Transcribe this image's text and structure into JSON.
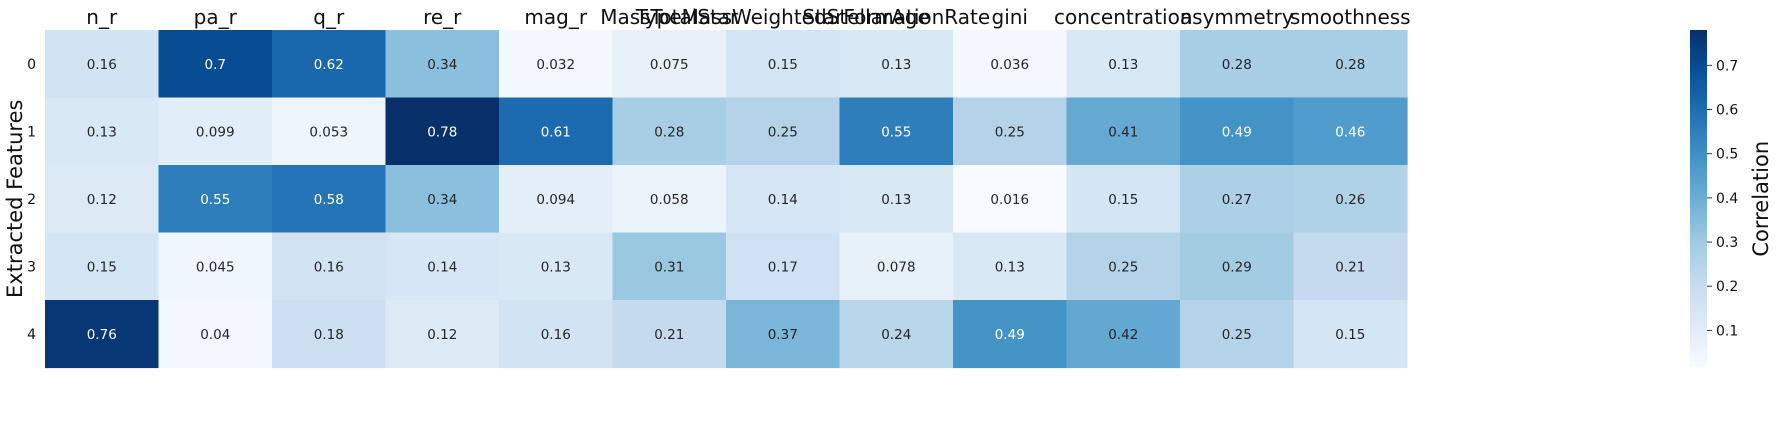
{
  "chart_data": {
    "type": "heatmap",
    "title": "",
    "ylabel": "Extracted Features",
    "colorbar_label": "Correlation",
    "colormap": "Blues",
    "color_range": [
      0.016,
      0.78
    ],
    "colorbar_ticks": [
      "0.1",
      "0.2",
      "0.3",
      "0.4",
      "0.5",
      "0.6",
      "0.7"
    ],
    "columns": [
      "n_r",
      "pa_r",
      "q_r",
      "re_r",
      "mag_r",
      "MassTotalStar",
      "TypeMassWeightedStellarAge",
      "StarFormationRate",
      "gini",
      "concentration",
      "asymmetry",
      "smoothness"
    ],
    "rows": [
      "0",
      "1",
      "2",
      "3",
      "4"
    ],
    "values": [
      [
        0.16,
        0.7,
        0.62,
        0.34,
        0.032,
        0.075,
        0.15,
        0.13,
        0.036,
        0.13,
        0.28,
        0.28
      ],
      [
        0.13,
        0.099,
        0.053,
        0.78,
        0.61,
        0.28,
        0.25,
        0.55,
        0.25,
        0.41,
        0.49,
        0.46
      ],
      [
        0.12,
        0.55,
        0.58,
        0.34,
        0.094,
        0.058,
        0.14,
        0.13,
        0.016,
        0.15,
        0.27,
        0.26
      ],
      [
        0.15,
        0.045,
        0.16,
        0.14,
        0.13,
        0.31,
        0.17,
        0.078,
        0.13,
        0.25,
        0.29,
        0.21
      ],
      [
        0.76,
        0.04,
        0.18,
        0.12,
        0.16,
        0.21,
        0.37,
        0.24,
        0.49,
        0.42,
        0.25,
        0.15
      ]
    ],
    "cell_labels": [
      [
        "0.16",
        "0.7",
        "0.62",
        "0.34",
        "0.032",
        "0.075",
        "0.15",
        "0.13",
        "0.036",
        "0.13",
        "0.28",
        "0.28"
      ],
      [
        "0.13",
        "0.099",
        "0.053",
        "0.78",
        "0.61",
        "0.28",
        "0.25",
        "0.55",
        "0.25",
        "0.41",
        "0.49",
        "0.46"
      ],
      [
        "0.12",
        "0.55",
        "0.58",
        "0.34",
        "0.094",
        "0.058",
        "0.14",
        "0.13",
        "0.016",
        "0.15",
        "0.27",
        "0.26"
      ],
      [
        "0.15",
        "0.045",
        "0.16",
        "0.14",
        "0.13",
        "0.31",
        "0.17",
        "0.078",
        "0.13",
        "0.25",
        "0.29",
        "0.21"
      ],
      [
        "0.76",
        "0.04",
        "0.18",
        "0.12",
        "0.16",
        "0.21",
        "0.37",
        "0.24",
        "0.49",
        "0.42",
        "0.25",
        "0.15"
      ]
    ]
  }
}
